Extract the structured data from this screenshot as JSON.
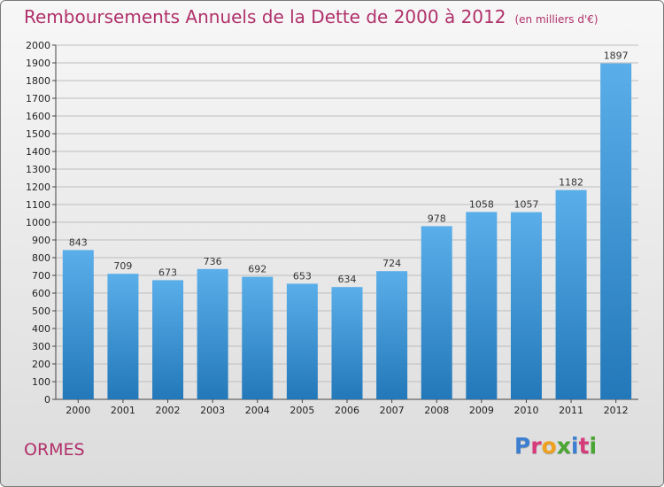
{
  "header": {
    "title": "Remboursements Annuels de la Dette de 2000 à 2012",
    "unit": "(en milliers d'€)"
  },
  "footer": {
    "commune": "ORMES",
    "logo_text": "Proxiti"
  },
  "colors": {
    "title": "#b0306a",
    "bar_light": "#5aaee9",
    "bar_dark": "#2378b9",
    "logo_letters": [
      "#3c7fd0",
      "#d63b7a",
      "#f0a21f",
      "#4aa632",
      "#3c7fd0",
      "#d63b7a",
      "#4aa632"
    ]
  },
  "chart_data": {
    "type": "bar",
    "categories": [
      "2000",
      "2001",
      "2002",
      "2003",
      "2004",
      "2005",
      "2006",
      "2007",
      "2008",
      "2009",
      "2010",
      "2011",
      "2012"
    ],
    "values": [
      843,
      709,
      673,
      736,
      692,
      653,
      634,
      724,
      978,
      1058,
      1057,
      1182,
      1897
    ],
    "ylim": [
      0,
      2000
    ],
    "yticks": [
      0,
      100,
      200,
      300,
      400,
      500,
      600,
      700,
      800,
      900,
      1000,
      1100,
      1200,
      1300,
      1400,
      1500,
      1600,
      1700,
      1800,
      1900,
      2000
    ],
    "grid": true,
    "data_labels": true
  }
}
